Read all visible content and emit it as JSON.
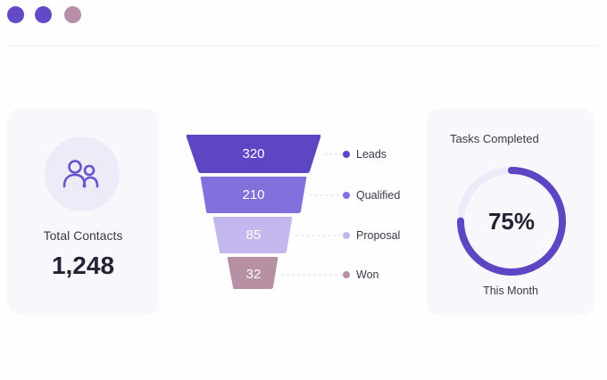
{
  "window": {
    "dots": [
      "#6349c8",
      "#6349c8",
      "#b88fa8"
    ]
  },
  "contacts": {
    "icon": "users-icon",
    "label": "Total Contacts",
    "value": "1,248"
  },
  "funnel": {
    "stages": [
      {
        "value": "320",
        "label": "Leads",
        "color": "#5d45c4",
        "dot": "#5d45c4"
      },
      {
        "value": "210",
        "label": "Qualified",
        "color": "#8270dd",
        "dot": "#8270dd"
      },
      {
        "value": "85",
        "label": "Proposal",
        "color": "#c3b7ed",
        "dot": "#c3b7ed"
      },
      {
        "value": "32",
        "label": "Won",
        "color": "#b890a4",
        "dot": "#b890a4"
      }
    ]
  },
  "tasks": {
    "title": "Tasks Completed",
    "percent_label": "75%",
    "percent": 75,
    "subtitle": "This Month",
    "ring_color": "#5d45c4",
    "track_color": "#eeebf8"
  }
}
